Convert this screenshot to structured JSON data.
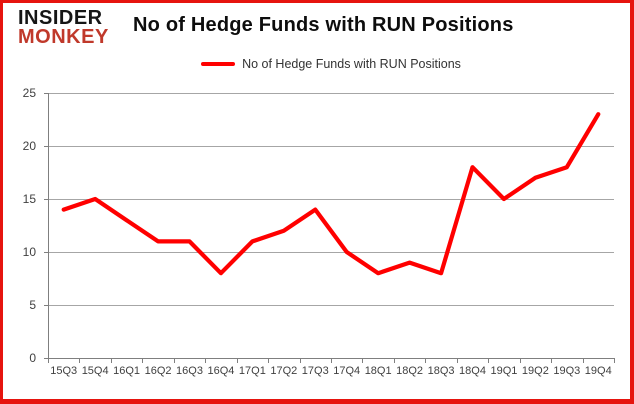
{
  "brand": {
    "line1": "INSIDER",
    "line2": "MONKEY"
  },
  "header": {
    "title": "No of Hedge Funds with RUN Positions"
  },
  "legend": {
    "label": "No of Hedge Funds with RUN Positions",
    "swatch_icon": "red-line-icon"
  },
  "colors": {
    "series_red": "#ff0000",
    "border_red": "#e6140e",
    "brand_red": "#c0392b",
    "brand_black": "#151515",
    "gridline": "#a6a6a6",
    "axis": "#7f7f7f",
    "tick_label": "#404040"
  },
  "chart_data": {
    "type": "line",
    "title": "No of Hedge Funds with RUN Positions",
    "categories": [
      "15Q3",
      "15Q4",
      "16Q1",
      "16Q2",
      "16Q3",
      "16Q4",
      "17Q1",
      "17Q2",
      "17Q3",
      "17Q4",
      "18Q1",
      "18Q2",
      "18Q3",
      "18Q4",
      "19Q1",
      "19Q2",
      "19Q3",
      "19Q4"
    ],
    "series": [
      {
        "name": "No of Hedge Funds with RUN Positions",
        "color": "#ff0000",
        "values": [
          14,
          15,
          13,
          11,
          11,
          8,
          11,
          12,
          14,
          10,
          8,
          9,
          8,
          18,
          15,
          17,
          18,
          23
        ]
      }
    ],
    "xlabel": "",
    "ylabel": "",
    "ylim": [
      0,
      25
    ],
    "yticks": [
      0,
      5,
      10,
      15,
      20,
      25
    ],
    "grid": true,
    "legend_position": "top-center"
  }
}
